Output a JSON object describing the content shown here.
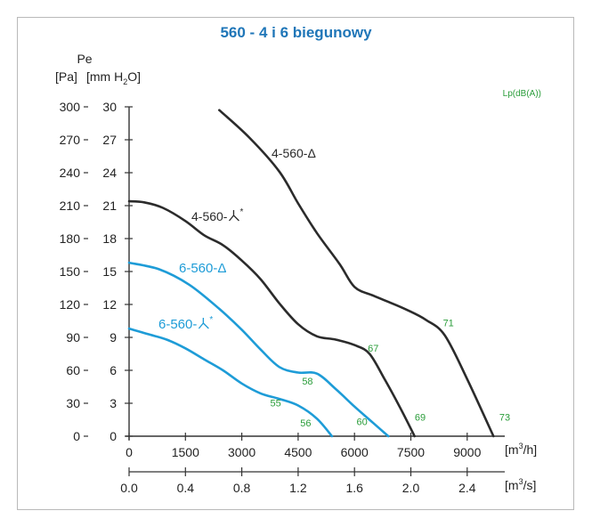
{
  "chart_data": {
    "type": "line",
    "title": "560 - 4 i 6 biegunowy",
    "ylabel": "Pe",
    "y_unit_pa": "[Pa]",
    "y_unit_mm_pre": "[mm H",
    "y_unit_mm_sub": "2",
    "y_unit_mm_post": "O]",
    "lp_label": "Lp(dB(A))",
    "x_unit_m3h_pre": "[m",
    "x_unit_m3h_sup": "3",
    "x_unit_m3h_post": "/h]",
    "x_unit_m3s_pre": "[m",
    "x_unit_m3s_sup": "3",
    "x_unit_m3s_post": "/s]",
    "xlim": [
      0,
      10000
    ],
    "ylim": [
      0,
      300
    ],
    "x_ticks": [
      "0",
      "1500",
      "3000",
      "4500",
      "6000",
      "7500",
      "9000"
    ],
    "x_tick_values": [
      0,
      1500,
      3000,
      4500,
      6000,
      7500,
      9000
    ],
    "x2_ticks": [
      "0.0",
      "0.4",
      "0.8",
      "1.2",
      "1.6",
      "2.0",
      "2.4"
    ],
    "y_ticks_pa": [
      "0",
      "30",
      "60",
      "90",
      "120",
      "150",
      "180",
      "210",
      "240",
      "270",
      "300"
    ],
    "y_ticks_mm": [
      "0",
      "3",
      "6",
      "9",
      "12",
      "15",
      "18",
      "21",
      "24",
      "27",
      "30"
    ],
    "y_tick_values": [
      0,
      30,
      60,
      90,
      120,
      150,
      180,
      210,
      240,
      270,
      300
    ],
    "series": [
      {
        "name": "4-560-Δ",
        "name_sup": "",
        "color": "#2b2b2b",
        "x": [
          2400,
          3200,
          4000,
          4500,
          5000,
          5600,
          6000,
          6500,
          7000,
          7400,
          7900,
          8400,
          9000,
          9700
        ],
        "y": [
          297,
          272,
          241,
          212,
          185,
          157,
          136,
          128,
          121,
          115,
          106,
          92,
          52,
          0
        ]
      },
      {
        "name": "4-560-",
        "name_sup": "*",
        "color": "#2b2b2b",
        "x": [
          0,
          400,
          900,
          1500,
          2000,
          2500,
          3000,
          3500,
          4000,
          4500,
          5000,
          5500,
          6000,
          6400,
          6800,
          7200,
          7600
        ],
        "y": [
          214,
          213,
          208,
          196,
          183,
          174,
          160,
          143,
          121,
          102,
          91,
          88,
          83,
          75,
          52,
          27,
          0
        ]
      },
      {
        "name": "6-560-Δ",
        "name_sup": "",
        "color": "#1e9cd7",
        "x": [
          0,
          800,
          1600,
          2400,
          3000,
          3500,
          4000,
          4500,
          5000,
          5500,
          6000,
          6500,
          6900
        ],
        "y": [
          158,
          152,
          138,
          116,
          97,
          79,
          63,
          58,
          57,
          43,
          27,
          12,
          0
        ]
      },
      {
        "name": "6-560-",
        "name_sup": "*",
        "color": "#1e9cd7",
        "x": [
          0,
          500,
          1000,
          1500,
          2000,
          2500,
          3000,
          3500,
          4000,
          4500,
          5000,
          5400
        ],
        "y": [
          98,
          93,
          88,
          80,
          70,
          60,
          48,
          39,
          34,
          28,
          16,
          0
        ]
      }
    ],
    "noise_labels": [
      {
        "text": "71",
        "x": 8500,
        "y": 100
      },
      {
        "text": "67",
        "x": 6500,
        "y": 77
      },
      {
        "text": "69",
        "x": 7750,
        "y": 14
      },
      {
        "text": "73",
        "x": 10000,
        "y": 14
      },
      {
        "text": "58",
        "x": 4750,
        "y": 47
      },
      {
        "text": "55",
        "x": 3900,
        "y": 27
      },
      {
        "text": "56",
        "x": 4700,
        "y": 9
      },
      {
        "text": "60",
        "x": 6200,
        "y": 10
      }
    ]
  }
}
